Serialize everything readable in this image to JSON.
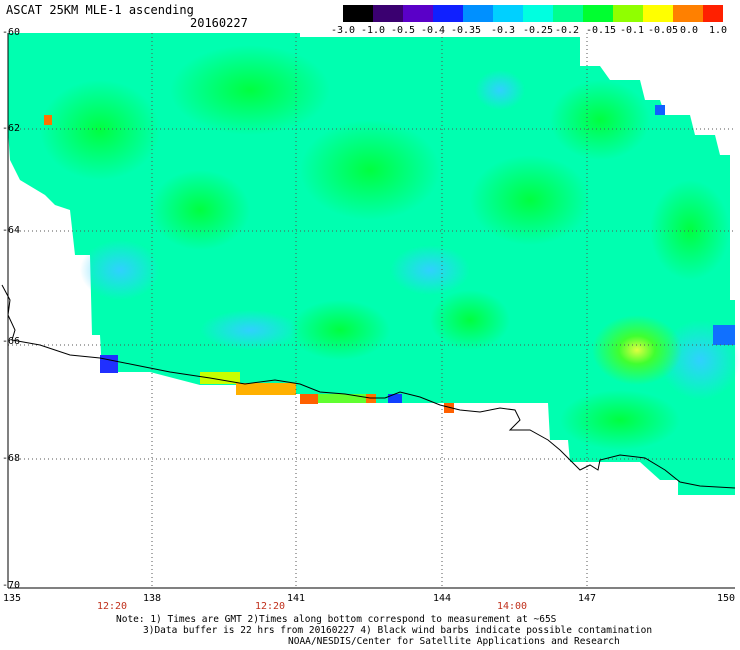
{
  "header": {
    "title": "ASCAT 25KM MLE-1 ascending",
    "date": "20160227"
  },
  "colorbar": {
    "ticks": [
      "-3.0",
      "-1.0",
      "-0.5",
      "-0.4",
      "-0.35",
      "-0.3",
      "-0.25",
      "-0.2",
      "-0.15",
      "-0.1",
      "-0.05",
      "0.0",
      "1.0"
    ],
    "colors": [
      "#000000",
      "#3a0070",
      "#5a00c8",
      "#1020ff",
      "#0090ff",
      "#00d0ff",
      "#00ffe0",
      "#00ff90",
      "#00ff30",
      "#90ff00",
      "#ffff00",
      "#ff8000",
      "#ff2000"
    ]
  },
  "map": {
    "lat_labels": [
      "-60",
      "-62",
      "-64",
      "-66",
      "-68",
      "-70"
    ],
    "lon_labels": [
      "135",
      "138",
      "141",
      "144",
      "147",
      "150"
    ],
    "time_labels": [
      "12:20",
      "12:20",
      "14:00"
    ]
  },
  "notes": {
    "line1": "Note: 1) Times are GMT 2)Times along bottom correspond to measurement at ~65S",
    "line2": "3)Data buffer is 22 hrs from 20160227 4) Black wind barbs indicate possible contamination",
    "line3": "NOAA/NESDIS/Center for Satellite Applications and Research"
  }
}
